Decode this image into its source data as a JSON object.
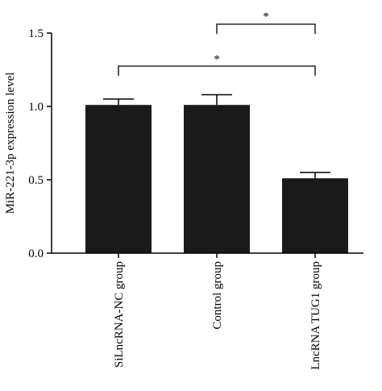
{
  "chart_data": {
    "type": "bar",
    "categories": [
      "SiLncRNA-NC group",
      "Control group",
      "LncRNA TUG1 group"
    ],
    "values": [
      1.01,
      1.01,
      0.51
    ],
    "errors": [
      0.04,
      0.07,
      0.04
    ],
    "ylabel": "MiR-221-3p expression level",
    "xlabel": "",
    "ylim": [
      0,
      1.5
    ],
    "yticks": [
      "0.0",
      "0.5",
      "1.0",
      "1.5"
    ],
    "bar_color": "#1a1a1a",
    "grid": false,
    "significance": [
      {
        "from": 1,
        "to": 2,
        "label": "*"
      },
      {
        "from": 0,
        "to": 2,
        "label": "*"
      }
    ]
  }
}
